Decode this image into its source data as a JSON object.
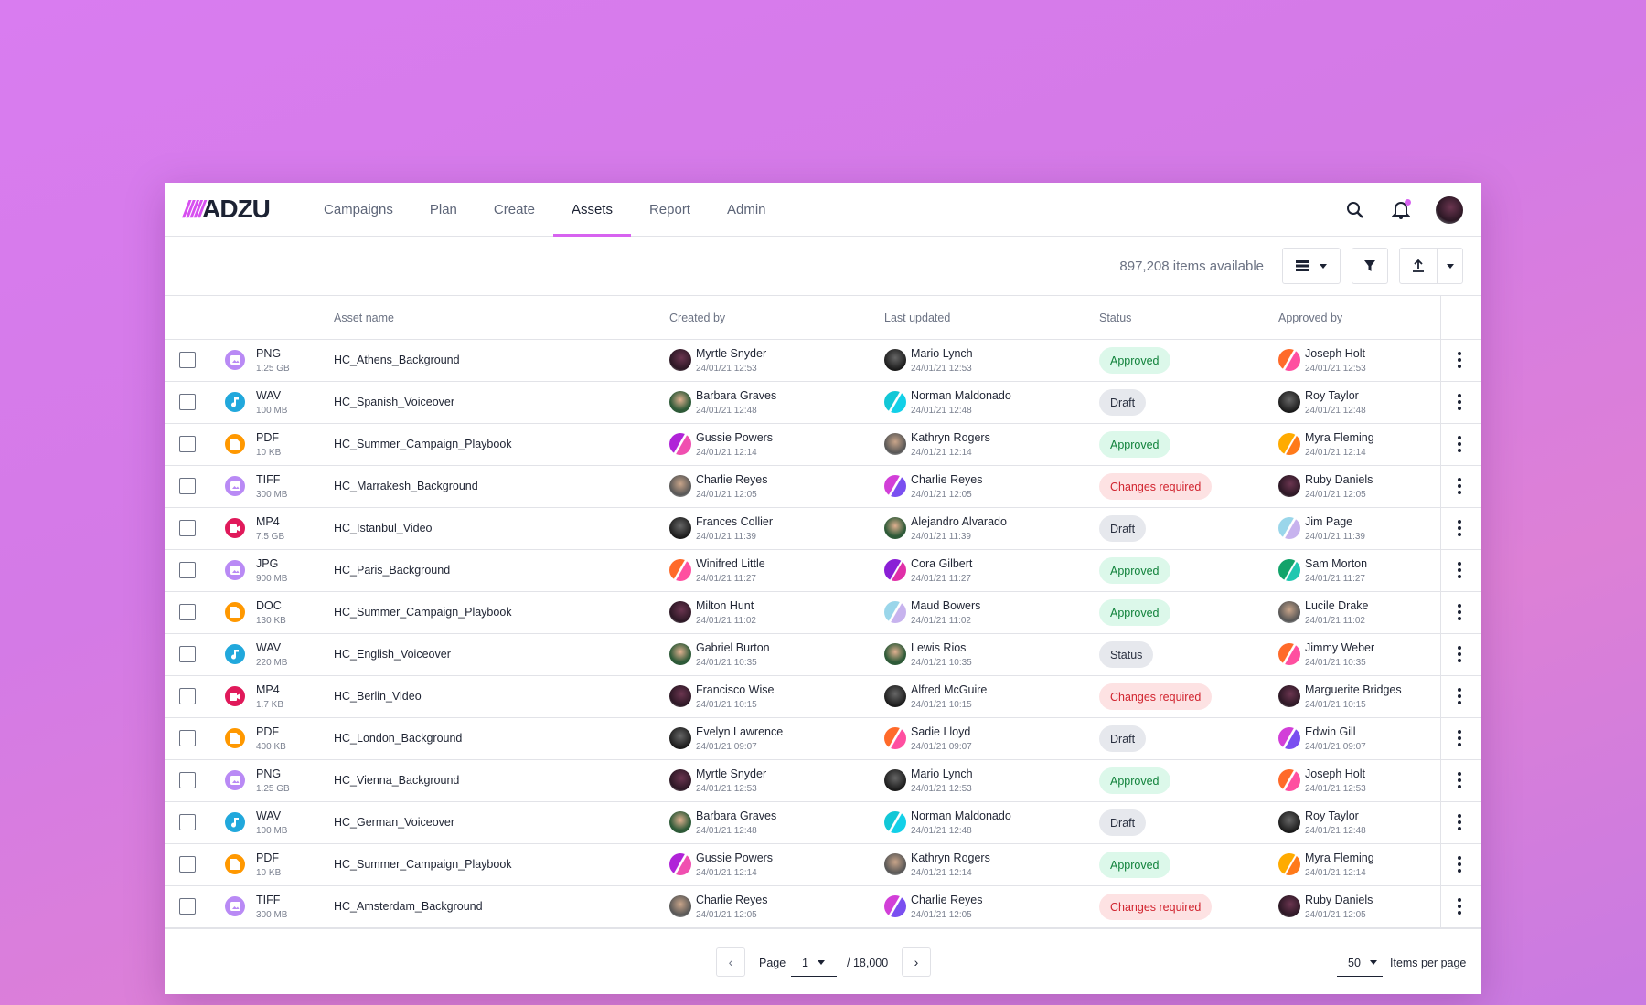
{
  "brand": {
    "logo_bars": "/////",
    "logo_text": "ADZU"
  },
  "nav": {
    "tabs": [
      {
        "label": "Campaigns"
      },
      {
        "label": "Plan"
      },
      {
        "label": "Create"
      },
      {
        "label": "Assets",
        "active": true
      },
      {
        "label": "Report"
      },
      {
        "label": "Admin"
      }
    ],
    "accent": "#d763f0"
  },
  "toolbar": {
    "count": "897,208 items available"
  },
  "table": {
    "headers": {
      "asset": "Asset name",
      "created": "Created by",
      "updated": "Last updated",
      "status": "Status",
      "approved": "Approved by"
    },
    "rows": [
      {
        "type": "PNG",
        "size": "1.25 GB",
        "kind": "image",
        "name": "HC_Athens_Background",
        "created": {
          "name": "Myrtle Snyder",
          "date": "24/01/21 12:53",
          "av": "maroon"
        },
        "updated": {
          "name": "Mario Lynch",
          "date": "24/01/21 12:53",
          "av": "dark"
        },
        "status": "Approved",
        "approved": {
          "name": "Joseph Holt",
          "date": "24/01/21 12:53",
          "av": "orange"
        }
      },
      {
        "type": "WAV",
        "size": "100 MB",
        "kind": "audio",
        "name": "HC_Spanish_Voiceover",
        "created": {
          "name": "Barbara Graves",
          "date": "24/01/21 12:48",
          "av": "green"
        },
        "updated": {
          "name": "Norman Maldonado",
          "date": "24/01/21 12:48",
          "av": "cyan"
        },
        "status": "Draft",
        "approved": {
          "name": "Roy Taylor",
          "date": "24/01/21 12:48",
          "av": "dark"
        }
      },
      {
        "type": "PDF",
        "size": "10 KB",
        "kind": "doc",
        "name": "HC_Summer_Campaign_Playbook",
        "created": {
          "name": "Gussie Powers",
          "date": "24/01/21 12:14",
          "av": "magenta"
        },
        "updated": {
          "name": "Kathryn Rogers",
          "date": "24/01/21 12:14",
          "av": "gray"
        },
        "status": "Approved",
        "approved": {
          "name": "Myra Fleming",
          "date": "24/01/21 12:14",
          "av": "yellow"
        }
      },
      {
        "type": "TIFF",
        "size": "300 MB",
        "kind": "image",
        "name": "HC_Marrakesh_Background",
        "created": {
          "name": "Charlie Reyes",
          "date": "24/01/21 12:05",
          "av": "gray"
        },
        "updated": {
          "name": "Charlie Reyes",
          "date": "24/01/21 12:05",
          "av": "violet"
        },
        "status": "Changes required",
        "approved": {
          "name": "Ruby Daniels",
          "date": "24/01/21 12:05",
          "av": "maroon"
        }
      },
      {
        "type": "MP4",
        "size": "7.5 GB",
        "kind": "video",
        "name": "HC_Istanbul_Video",
        "created": {
          "name": "Frances Collier",
          "date": "24/01/21 11:39",
          "av": "dark"
        },
        "updated": {
          "name": "Alejandro Alvarado",
          "date": "24/01/21 11:39",
          "av": "green"
        },
        "status": "Draft",
        "approved": {
          "name": "Jim Page",
          "date": "24/01/21 11:39",
          "av": "lightblue"
        }
      },
      {
        "type": "JPG",
        "size": "900 MB",
        "kind": "image",
        "name": "HC_Paris_Background",
        "created": {
          "name": "Winifred Little",
          "date": "24/01/21 11:27",
          "av": "orange"
        },
        "updated": {
          "name": "Cora Gilbert",
          "date": "24/01/21 11:27",
          "av": "purple"
        },
        "status": "Approved",
        "approved": {
          "name": "Sam Morton",
          "date": "24/01/21 11:27",
          "av": "teal"
        }
      },
      {
        "type": "DOC",
        "size": "130 KB",
        "kind": "doc",
        "name": "HC_Summer_Campaign_Playbook",
        "created": {
          "name": "Milton Hunt",
          "date": "24/01/21 11:02",
          "av": "maroon"
        },
        "updated": {
          "name": "Maud Bowers",
          "date": "24/01/21 11:02",
          "av": "lightblue"
        },
        "status": "Approved",
        "approved": {
          "name": "Lucile Drake",
          "date": "24/01/21 11:02",
          "av": "gray"
        }
      },
      {
        "type": "WAV",
        "size": "220 MB",
        "kind": "audio",
        "name": "HC_English_Voiceover",
        "created": {
          "name": "Gabriel Burton",
          "date": "24/01/21 10:35",
          "av": "green"
        },
        "updated": {
          "name": "Lewis Rios",
          "date": "24/01/21 10:35",
          "av": "green"
        },
        "status": "Status",
        "approved": {
          "name": "Jimmy Weber",
          "date": "24/01/21 10:35",
          "av": "orange"
        }
      },
      {
        "type": "MP4",
        "size": "1.7 KB",
        "kind": "video",
        "name": "HC_Berlin_Video",
        "created": {
          "name": "Francisco Wise",
          "date": "24/01/21 10:15",
          "av": "maroon"
        },
        "updated": {
          "name": "Alfred McGuire",
          "date": "24/01/21 10:15",
          "av": "dark"
        },
        "status": "Changes required",
        "approved": {
          "name": "Marguerite Bridges",
          "date": "24/01/21 10:15",
          "av": "maroon"
        }
      },
      {
        "type": "PDF",
        "size": "400 KB",
        "kind": "doc",
        "name": "HC_London_Background",
        "created": {
          "name": "Evelyn Lawrence",
          "date": "24/01/21 09:07",
          "av": "dark"
        },
        "updated": {
          "name": "Sadie Lloyd",
          "date": "24/01/21 09:07",
          "av": "orange"
        },
        "status": "Draft",
        "approved": {
          "name": "Edwin Gill",
          "date": "24/01/21 09:07",
          "av": "violet"
        }
      },
      {
        "type": "PNG",
        "size": "1.25 GB",
        "kind": "image",
        "name": "HC_Vienna_Background",
        "created": {
          "name": "Myrtle Snyder",
          "date": "24/01/21 12:53",
          "av": "maroon"
        },
        "updated": {
          "name": "Mario Lynch",
          "date": "24/01/21 12:53",
          "av": "dark"
        },
        "status": "Approved",
        "approved": {
          "name": "Joseph Holt",
          "date": "24/01/21 12:53",
          "av": "orange"
        }
      },
      {
        "type": "WAV",
        "size": "100 MB",
        "kind": "audio",
        "name": "HC_German_Voiceover",
        "created": {
          "name": "Barbara Graves",
          "date": "24/01/21 12:48",
          "av": "green"
        },
        "updated": {
          "name": "Norman Maldonado",
          "date": "24/01/21 12:48",
          "av": "cyan"
        },
        "status": "Draft",
        "approved": {
          "name": "Roy Taylor",
          "date": "24/01/21 12:48",
          "av": "dark"
        }
      },
      {
        "type": "PDF",
        "size": "10 KB",
        "kind": "doc",
        "name": "HC_Summer_Campaign_Playbook",
        "created": {
          "name": "Gussie Powers",
          "date": "24/01/21 12:14",
          "av": "magenta"
        },
        "updated": {
          "name": "Kathryn Rogers",
          "date": "24/01/21 12:14",
          "av": "gray"
        },
        "status": "Approved",
        "approved": {
          "name": "Myra Fleming",
          "date": "24/01/21 12:14",
          "av": "yellow"
        }
      },
      {
        "type": "TIFF",
        "size": "300 MB",
        "kind": "image",
        "name": "HC_Amsterdam_Background",
        "created": {
          "name": "Charlie Reyes",
          "date": "24/01/21 12:05",
          "av": "gray"
        },
        "updated": {
          "name": "Charlie Reyes",
          "date": "24/01/21 12:05",
          "av": "violet"
        },
        "status": "Changes required",
        "approved": {
          "name": "Ruby Daniels",
          "date": "24/01/21 12:05",
          "av": "maroon"
        }
      }
    ]
  },
  "kind_colors": {
    "image": "#b98af5",
    "audio": "#21a8dc",
    "doc": "#ff9800",
    "video": "#e0195a"
  },
  "pagination": {
    "page_label": "Page",
    "page": "1",
    "total": "/ 18,000",
    "per_page": "50",
    "per_page_label": "Items per page"
  }
}
